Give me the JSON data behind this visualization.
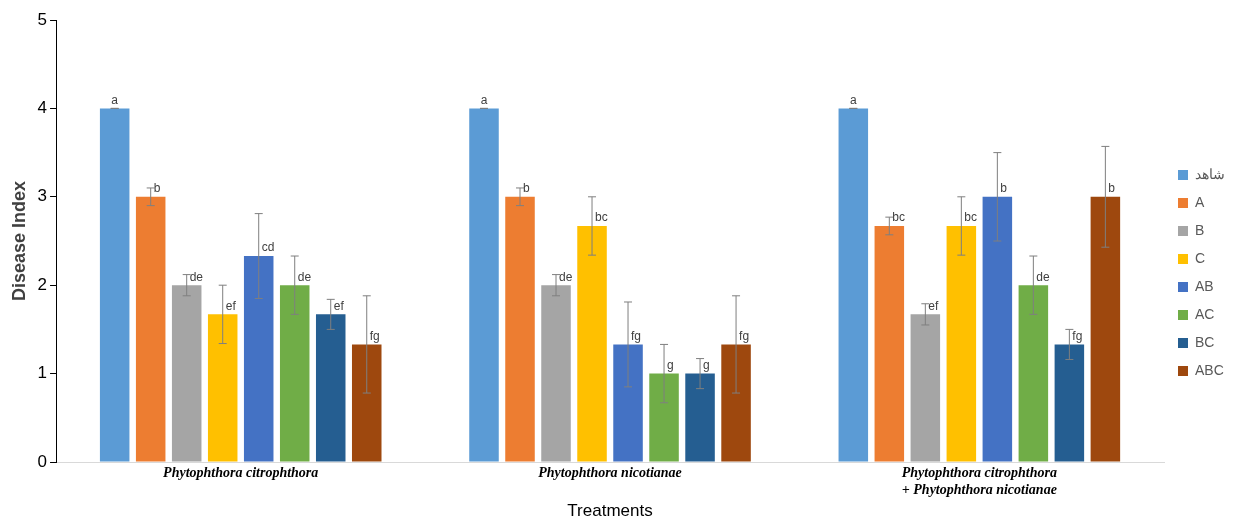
{
  "chart_data": {
    "type": "bar",
    "xlabel": "Treatments",
    "ylabel": "Disease Index",
    "categories": [
      "Phytophthora citrophthora",
      "Phytophthora nicotianae",
      "Phytophthora citrophthora\n+ Phytophthora nicotianae"
    ],
    "ylim": [
      0,
      5
    ],
    "yticks": [
      0,
      1,
      2,
      3,
      4,
      5
    ],
    "grid": false,
    "legend": "right",
    "series": [
      {
        "name": "شاهد",
        "color": "#5b9bd5",
        "values": [
          4,
          4,
          4
        ],
        "errors": [
          0,
          0,
          0
        ],
        "value_labels": [
          "a",
          "a",
          "a"
        ]
      },
      {
        "name": "A",
        "color": "#ed7d31",
        "values": [
          3,
          3,
          2.67
        ],
        "errors": [
          0.1,
          0.1,
          0.1
        ],
        "value_labels": [
          "b",
          "b",
          "bc"
        ]
      },
      {
        "name": "B",
        "color": "#a5a5a5",
        "values": [
          2,
          2,
          1.67
        ],
        "errors": [
          0.12,
          0.12,
          0.12
        ],
        "value_labels": [
          "de",
          "de",
          "ef"
        ]
      },
      {
        "name": "C",
        "color": "#ffc000",
        "values": [
          1.67,
          2.67,
          2.67
        ],
        "errors": [
          0.33,
          0.33,
          0.33
        ],
        "value_labels": [
          "ef",
          "bc",
          "bc"
        ]
      },
      {
        "name": "AB",
        "color": "#4472c4",
        "values": [
          2.33,
          1.33,
          3
        ],
        "errors": [
          0.48,
          0.48,
          0.5
        ],
        "value_labels": [
          "cd",
          "fg",
          "b"
        ]
      },
      {
        "name": "AC",
        "color": "#70ad47",
        "values": [
          2,
          1,
          2
        ],
        "errors": [
          0.33,
          0.33,
          0.33
        ],
        "value_labels": [
          "de",
          "g",
          "de"
        ]
      },
      {
        "name": "BC",
        "color": "#255e91",
        "values": [
          1.67,
          1,
          1.33
        ],
        "errors": [
          0.17,
          0.17,
          0.17
        ],
        "value_labels": [
          "ef",
          "g",
          "fg"
        ]
      },
      {
        "name": "ABC",
        "color": "#9e480e",
        "values": [
          1.33,
          1.33,
          3
        ],
        "errors": [
          0.55,
          0.55,
          0.57
        ],
        "value_labels": [
          "fg",
          "fg",
          "b"
        ]
      }
    ]
  }
}
